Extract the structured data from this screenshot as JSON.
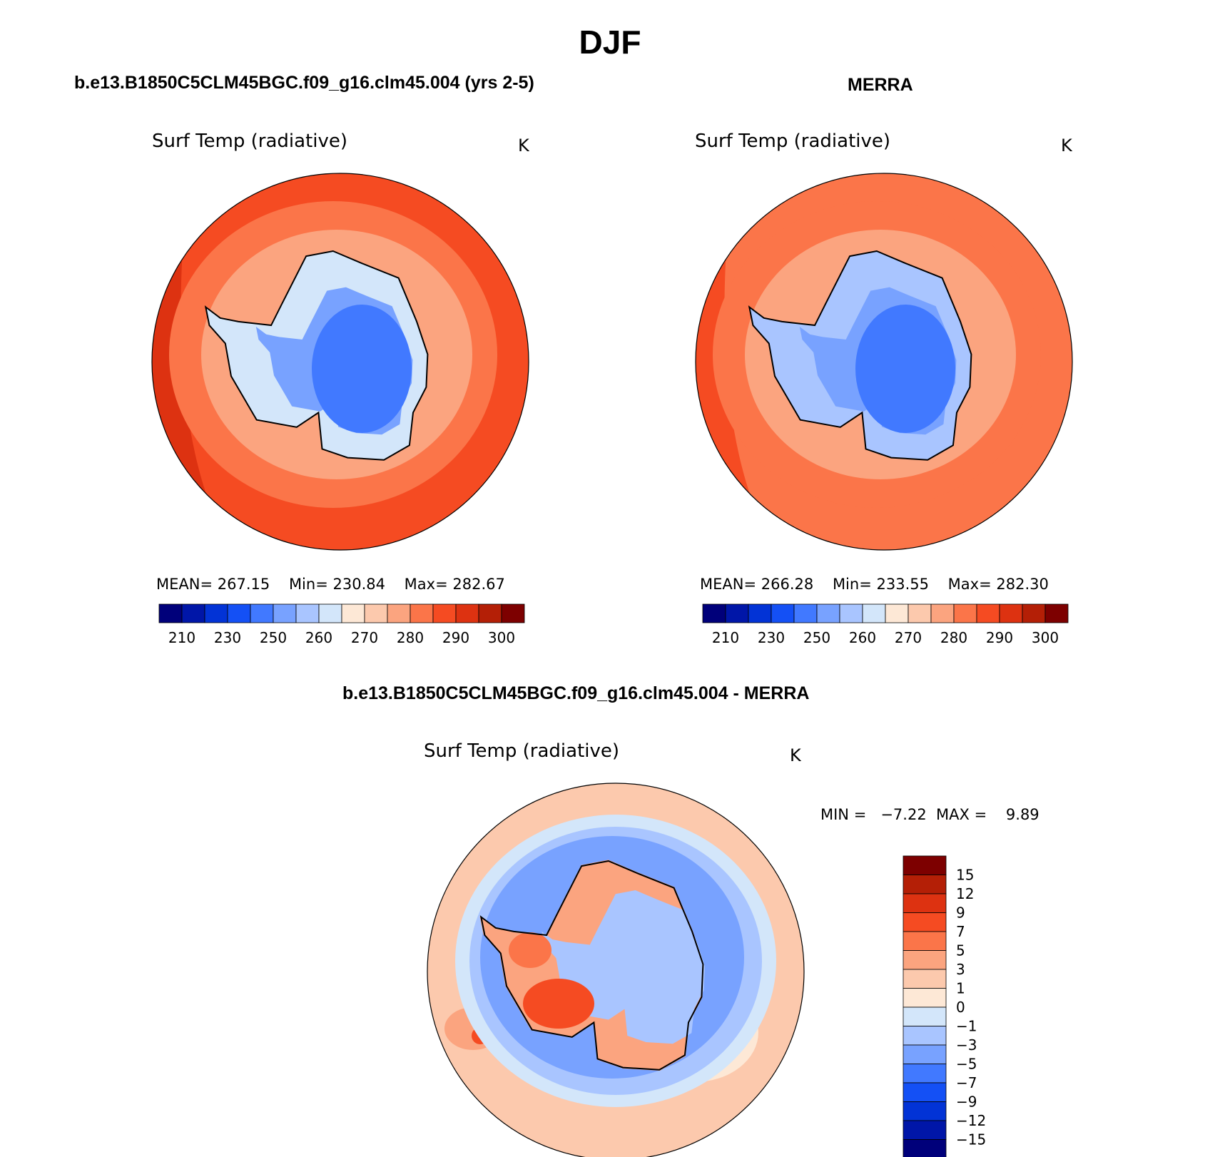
{
  "chart_data": {
    "type": "heatmap",
    "title": "DJF",
    "variable": "Surf Temp (radiative)",
    "units": "K",
    "colors": {
      "abs": [
        "#00007a",
        "#0016a8",
        "#0233d6",
        "#1450f5",
        "#4179ff",
        "#78a2ff",
        "#a9c5ff",
        "#d3e6fa",
        "#fde8d6",
        "#fcc9ad",
        "#fba47f",
        "#fb7549",
        "#f54b22",
        "#dd3211",
        "#b41f06",
        "#7d0000"
      ],
      "diff": [
        "#00007a",
        "#0016a8",
        "#0233d6",
        "#1450f5",
        "#4179ff",
        "#78a2ff",
        "#a9c5ff",
        "#d3e6fa",
        "#fde8d6",
        "#fcc9ad",
        "#fba47f",
        "#fb7549",
        "#f54b22",
        "#dd3211",
        "#b41f06",
        "#7d0000"
      ]
    },
    "panels": [
      {
        "title": "b.e13.B1850C5CLM45BGC.f09_g16.clm45.004 (yrs 2-5)",
        "variable": "Surf Temp (radiative)",
        "units": "K",
        "stats": {
          "mean_label": "MEAN=",
          "mean": "267.15",
          "min_label": "Min=",
          "min": "230.84",
          "max_label": "Max=",
          "max": "282.67"
        },
        "colorbar_ticks": [
          "210",
          "230",
          "250",
          "260",
          "270",
          "280",
          "290",
          "300"
        ],
        "levels": {
          "ocean_south": 280,
          "ocean_mid": 275,
          "ocean_north": 285,
          "coast_ring": 270,
          "antarctica_coast": 255,
          "antarctica_interior": 240
        }
      },
      {
        "title": "MERRA",
        "variable": "Surf Temp (radiative)",
        "units": "K",
        "stats": {
          "mean_label": "MEAN=",
          "mean": "266.28",
          "min_label": "Min=",
          "min": "233.55",
          "max_label": "Max=",
          "max": "282.30"
        },
        "colorbar_ticks": [
          "210",
          "230",
          "250",
          "260",
          "270",
          "280",
          "290",
          "300"
        ],
        "levels": {
          "ocean_south": 275,
          "ocean_mid": 275,
          "ocean_north": 280,
          "coast_ring": 270,
          "antarctica_coast": 250,
          "antarctica_interior": 240
        }
      },
      {
        "title": "b.e13.B1850C5CLM45BGC.f09_g16.clm45.004 - MERRA",
        "variable": "Surf Temp (radiative)",
        "units": "K",
        "stats": {
          "min_label": "MIN =",
          "min": "−7.22",
          "max_label": "MAX =",
          "max": "9.89"
        },
        "colorbar_ticks": [
          "15",
          "12",
          "9",
          "7",
          "5",
          "3",
          "1",
          "0",
          "−1",
          "−3",
          "−5",
          "−7",
          "−9",
          "−12",
          "−15"
        ],
        "levels": {
          "ocean": 1,
          "ice_ring": -3,
          "inner_ring": -5,
          "antarctica_east": -2,
          "antarctica_west": 3,
          "ross_hotspot": 8
        }
      }
    ]
  }
}
